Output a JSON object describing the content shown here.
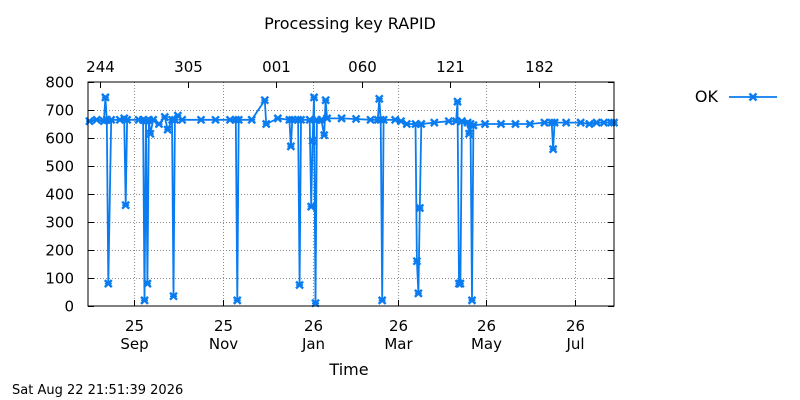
{
  "chart_data": {
    "type": "line",
    "title": "Processing key RAPID",
    "xlabel": "Time",
    "ylabel": "",
    "ylim": [
      0,
      800
    ],
    "yticks": [
      0,
      100,
      200,
      300,
      400,
      500,
      600,
      700,
      800
    ],
    "xlim": [
      "2025-08-24",
      "2026-08-22"
    ],
    "bottom_ticks": [
      {
        "date": "2025-09-25",
        "label": "25\nSep"
      },
      {
        "date": "2025-11-25",
        "label": "25\nNov"
      },
      {
        "date": "2026-01-26",
        "label": "26\nJan"
      },
      {
        "date": "2026-03-26",
        "label": "26\nMar"
      },
      {
        "date": "2026-05-26",
        "label": "26\nMay"
      },
      {
        "date": "2026-07-26",
        "label": "26\nJul"
      }
    ],
    "top_ticks": [
      {
        "date": "2025-09-01",
        "label": "244"
      },
      {
        "date": "2025-11-01",
        "label": "305"
      },
      {
        "date": "2026-01-01",
        "label": "001"
      },
      {
        "date": "2026-03-01",
        "label": "060"
      },
      {
        "date": "2026-05-01",
        "label": "121"
      },
      {
        "date": "2026-07-01",
        "label": "182"
      }
    ],
    "grid": true,
    "legend_position": "right",
    "series": [
      {
        "name": "OK",
        "color": "#0a7cf0",
        "marker": "x-mark",
        "points": [
          [
            "2025-08-25",
            660
          ],
          [
            "2025-08-30",
            665
          ],
          [
            "2025-09-04",
            660
          ],
          [
            "2025-09-05",
            745
          ],
          [
            "2025-09-06",
            665
          ],
          [
            "2025-09-07",
            80
          ],
          [
            "2025-09-09",
            665
          ],
          [
            "2025-09-15",
            665
          ],
          [
            "2025-09-18",
            670
          ],
          [
            "2025-09-19",
            360
          ],
          [
            "2025-09-20",
            665
          ],
          [
            "2025-09-28",
            665
          ],
          [
            "2025-10-01",
            665
          ],
          [
            "2025-10-02",
            20
          ],
          [
            "2025-10-03",
            660
          ],
          [
            "2025-10-04",
            80
          ],
          [
            "2025-10-05",
            665
          ],
          [
            "2025-10-06",
            615
          ],
          [
            "2025-10-08",
            665
          ],
          [
            "2025-10-12",
            650
          ],
          [
            "2025-10-16",
            675
          ],
          [
            "2025-10-18",
            630
          ],
          [
            "2025-10-21",
            665
          ],
          [
            "2025-10-22",
            35
          ],
          [
            "2025-10-23",
            665
          ],
          [
            "2025-10-25",
            680
          ],
          [
            "2025-10-28",
            665
          ],
          [
            "2025-11-10",
            665
          ],
          [
            "2025-11-20",
            665
          ],
          [
            "2025-11-30",
            665
          ],
          [
            "2025-12-04",
            665
          ],
          [
            "2025-12-05",
            20
          ],
          [
            "2025-12-06",
            665
          ],
          [
            "2025-12-15",
            665
          ],
          [
            "2025-12-24",
            735
          ],
          [
            "2025-12-25",
            650
          ],
          [
            "2026-01-02",
            670
          ],
          [
            "2026-01-10",
            665
          ],
          [
            "2026-01-11",
            570
          ],
          [
            "2026-01-12",
            665
          ],
          [
            "2026-01-16",
            665
          ],
          [
            "2026-01-17",
            75
          ],
          [
            "2026-01-18",
            665
          ],
          [
            "2026-01-24",
            665
          ],
          [
            "2026-01-25",
            355
          ],
          [
            "2026-01-26",
            590
          ],
          [
            "2026-01-27",
            745
          ],
          [
            "2026-01-28",
            10
          ],
          [
            "2026-01-29",
            665
          ],
          [
            "2026-02-01",
            665
          ],
          [
            "2026-02-03",
            610
          ],
          [
            "2026-02-04",
            735
          ],
          [
            "2026-02-05",
            670
          ],
          [
            "2026-02-15",
            670
          ],
          [
            "2026-02-25",
            668
          ],
          [
            "2026-03-07",
            665
          ],
          [
            "2026-03-12",
            665
          ],
          [
            "2026-03-13",
            740
          ],
          [
            "2026-03-14",
            665
          ],
          [
            "2026-03-15",
            20
          ],
          [
            "2026-03-16",
            665
          ],
          [
            "2026-03-24",
            665
          ],
          [
            "2026-03-28",
            660
          ],
          [
            "2026-04-01",
            650
          ],
          [
            "2026-04-07",
            650
          ],
          [
            "2026-04-08",
            160
          ],
          [
            "2026-04-09",
            45
          ],
          [
            "2026-04-10",
            350
          ],
          [
            "2026-04-11",
            650
          ],
          [
            "2026-04-20",
            655
          ],
          [
            "2026-04-30",
            660
          ],
          [
            "2026-05-05",
            660
          ],
          [
            "2026-05-06",
            730
          ],
          [
            "2026-05-07",
            80
          ],
          [
            "2026-05-08",
            80
          ],
          [
            "2026-05-09",
            660
          ],
          [
            "2026-05-13",
            655
          ],
          [
            "2026-05-14",
            615
          ],
          [
            "2026-05-15",
            650
          ],
          [
            "2026-05-16",
            20
          ],
          [
            "2026-05-17",
            645
          ],
          [
            "2026-05-25",
            650
          ],
          [
            "2026-06-05",
            650
          ],
          [
            "2026-06-15",
            650
          ],
          [
            "2026-06-25",
            650
          ],
          [
            "2026-07-05",
            655
          ],
          [
            "2026-07-10",
            655
          ],
          [
            "2026-07-11",
            560
          ],
          [
            "2026-07-12",
            655
          ],
          [
            "2026-07-20",
            655
          ],
          [
            "2026-07-30",
            655
          ],
          [
            "2026-08-05",
            650
          ],
          [
            "2026-08-10",
            655
          ],
          [
            "2026-08-15",
            655
          ],
          [
            "2026-08-20",
            655
          ],
          [
            "2026-08-22",
            655
          ]
        ]
      }
    ]
  },
  "footer": {
    "timestamp": "Sat Aug 22 21:51:39 2026"
  }
}
